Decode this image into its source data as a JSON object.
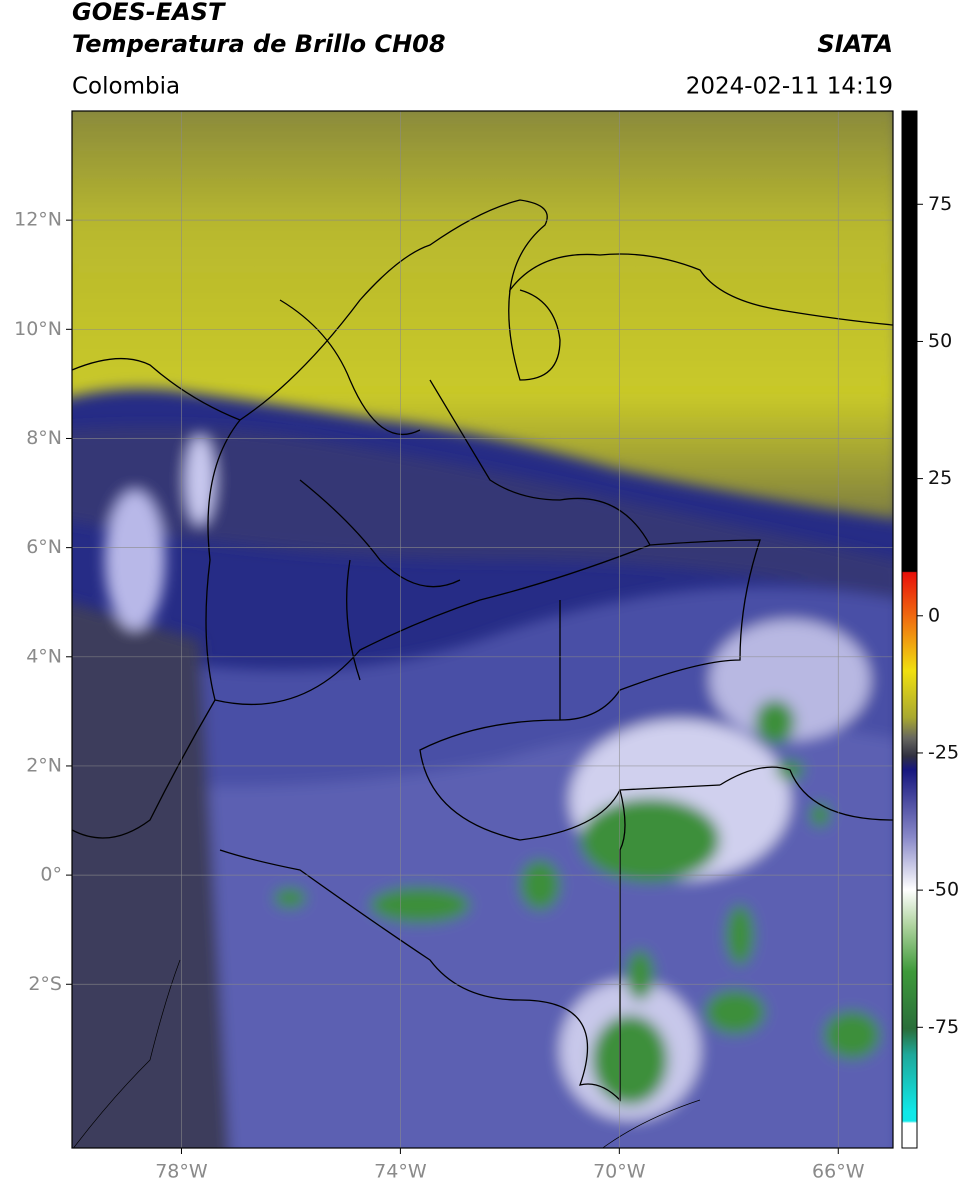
{
  "header": {
    "title": "GOES-EAST",
    "subtitle": "Temperatura de Brillo CH08",
    "source": "SIATA",
    "region": "Colombia",
    "timestamp": "2024-02-11 14:19"
  },
  "map": {
    "xlim": [
      -80,
      -65
    ],
    "ylim": [
      -5,
      14
    ],
    "xticks": [
      {
        "value": -78,
        "label": "78°W"
      },
      {
        "value": -74,
        "label": "74°W"
      },
      {
        "value": -70,
        "label": "70°W"
      },
      {
        "value": -66,
        "label": "66°W"
      }
    ],
    "yticks": [
      {
        "value": 12,
        "label": "12°N"
      },
      {
        "value": 10,
        "label": "10°N"
      },
      {
        "value": 8,
        "label": "8°N"
      },
      {
        "value": 6,
        "label": "6°N"
      },
      {
        "value": 4,
        "label": "4°N"
      },
      {
        "value": 2,
        "label": "2°N"
      },
      {
        "value": 0,
        "label": "0°"
      },
      {
        "value": -2,
        "label": "2°S"
      }
    ]
  },
  "colorbar": {
    "clim": [
      -97,
      92
    ],
    "ticks": [
      75,
      50,
      25,
      0,
      -25,
      -50,
      -75
    ]
  }
}
